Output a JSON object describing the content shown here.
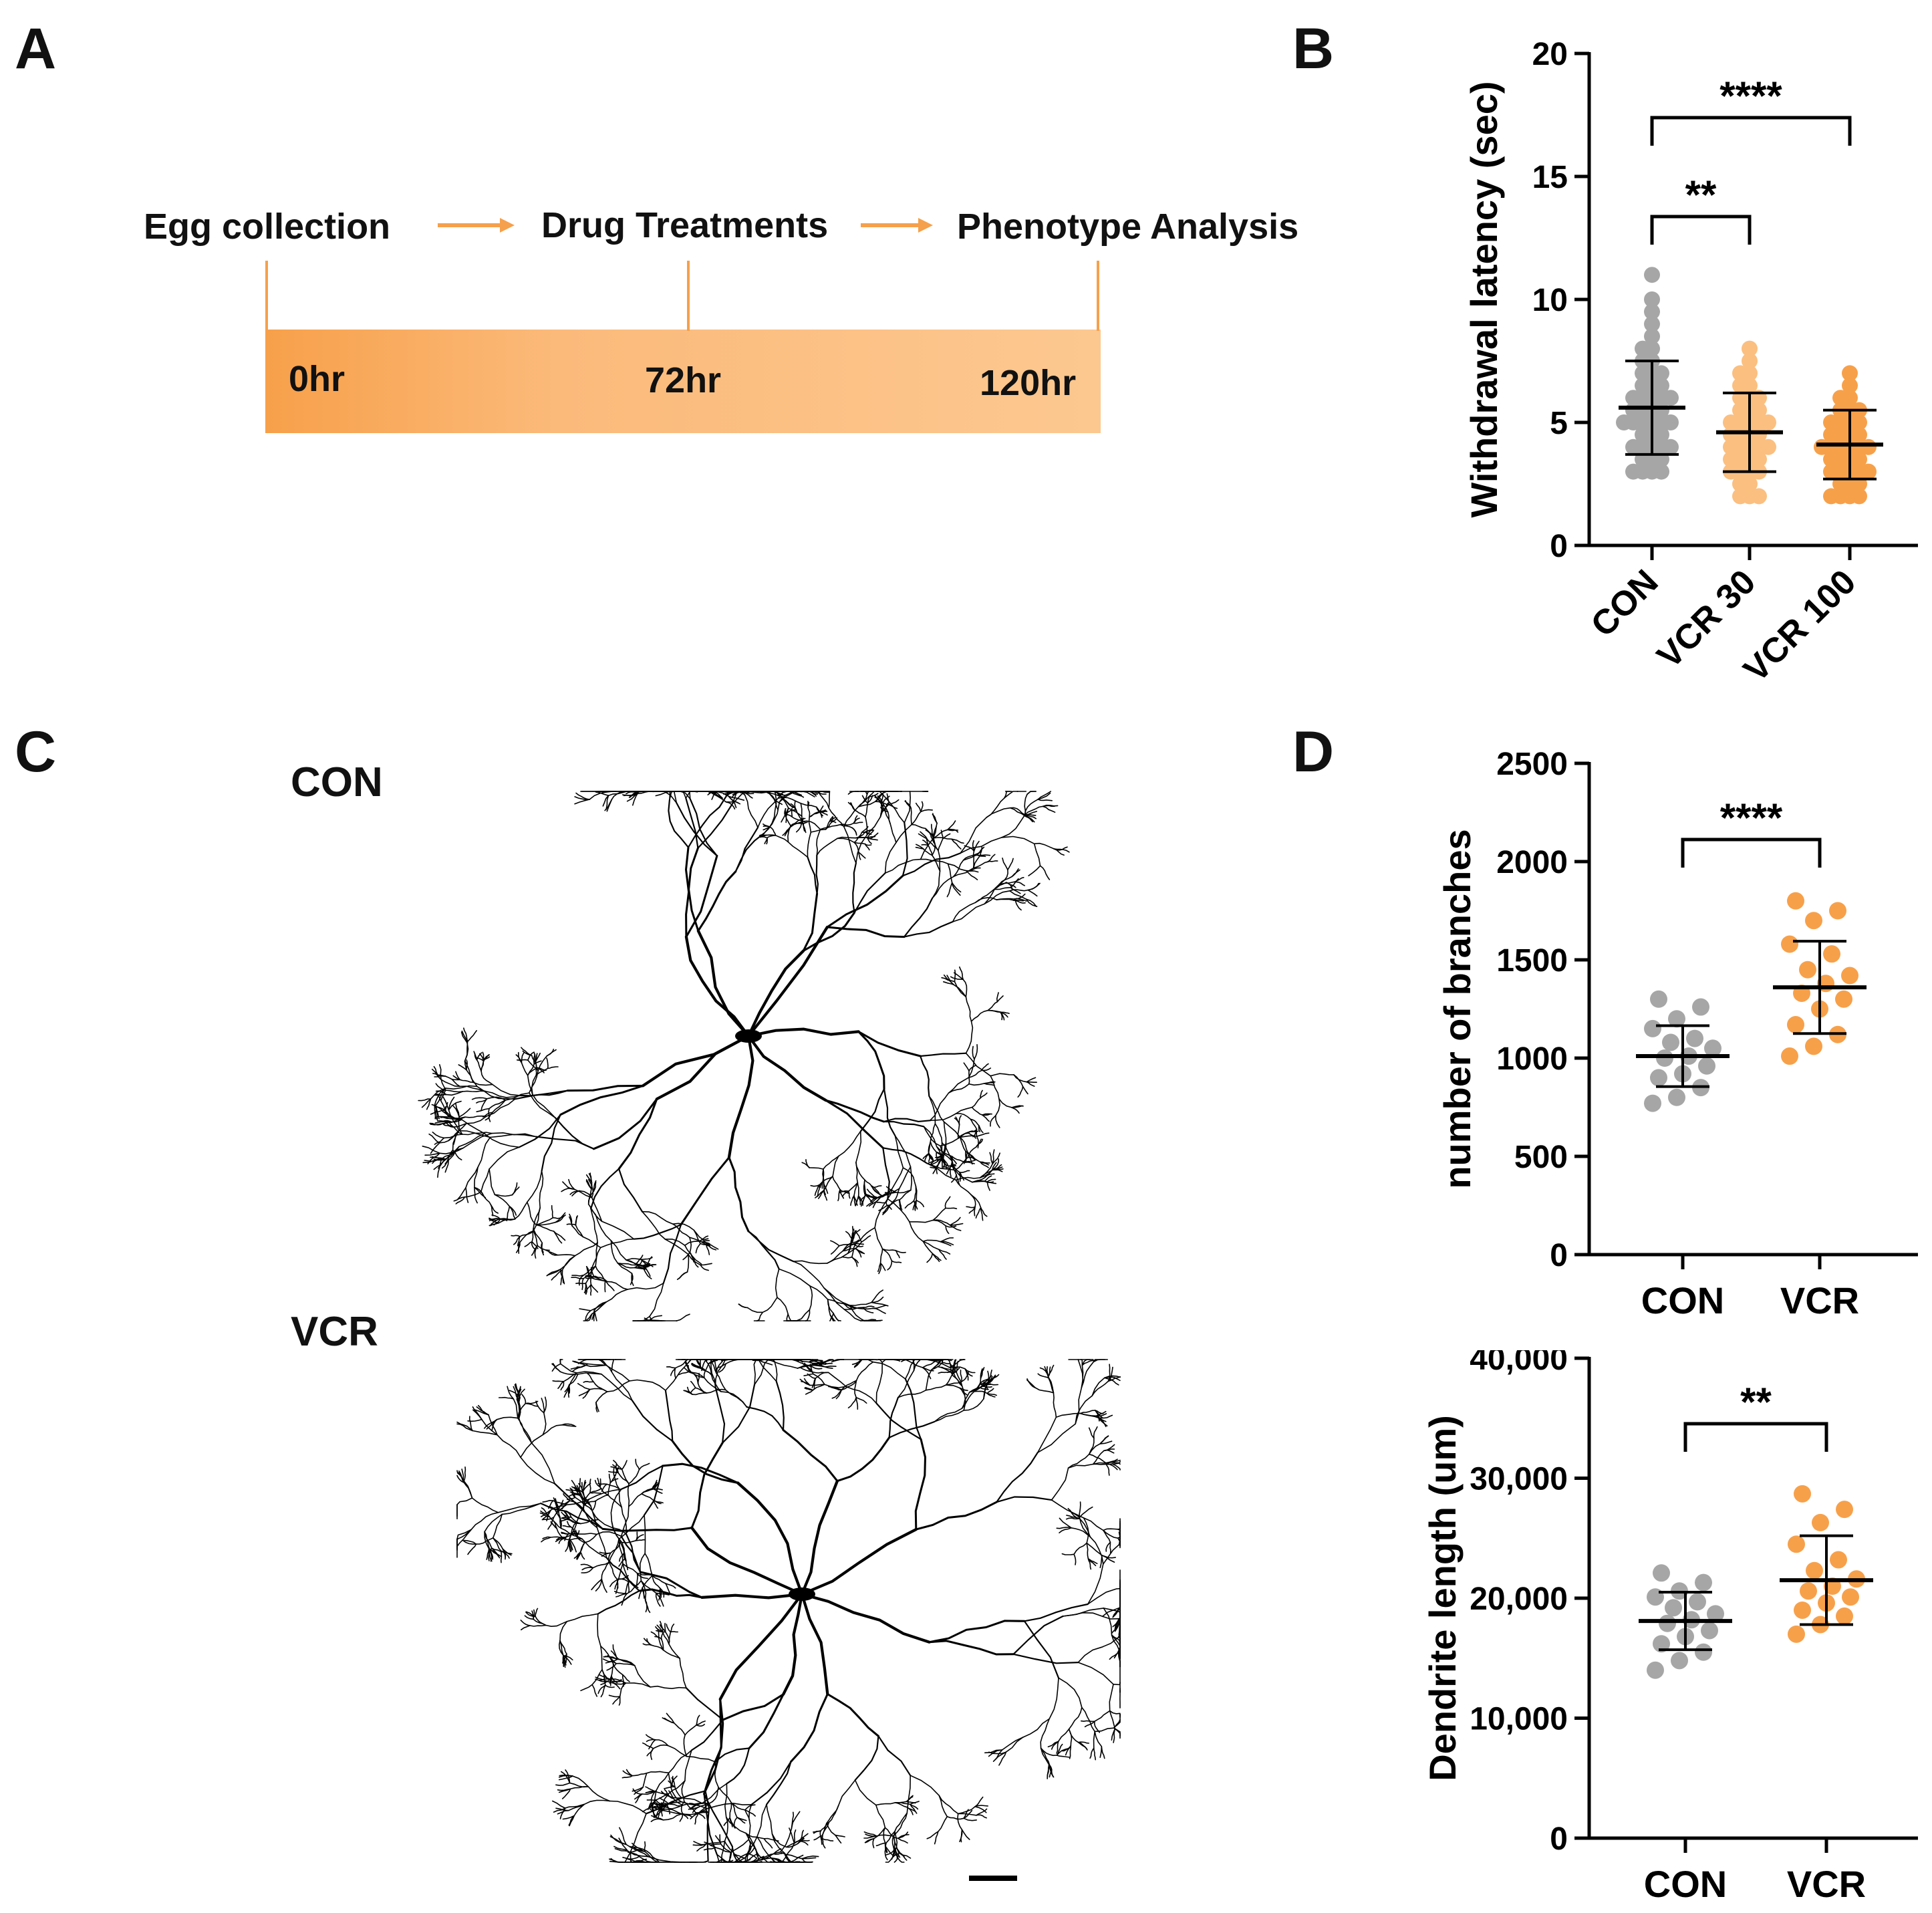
{
  "panels": {
    "a": "A",
    "b": "B",
    "c": "C",
    "d": "D"
  },
  "timeline": {
    "stages": [
      "Egg collection",
      "Drug Treatments",
      "Phenotype Analysis"
    ],
    "times": [
      "0hr",
      "72hr",
      "120hr"
    ]
  },
  "neurons": {
    "top": "CON",
    "bottom": "VCR"
  },
  "colors": {
    "con": "#a6a6a6",
    "vcr30": "#fbbf80",
    "vcr100": "#f7a04a",
    "vcr": "#f7a04a",
    "bar_start": "#f7a04a",
    "bar_end": "#fcc890",
    "arrow": "#f5a04c"
  },
  "chart_data": [
    {
      "type": "scatter",
      "title": "",
      "ylabel": "Withdrawal latency (sec)",
      "categories": [
        "CON",
        "VCR 30",
        "VCR 100"
      ],
      "ylim": [
        0,
        20
      ],
      "yticks": [
        0,
        5,
        10,
        15,
        20
      ],
      "series": [
        {
          "name": "CON",
          "mean": 5.6,
          "sd": 1.9,
          "values": [
            3,
            3,
            3,
            3,
            3.5,
            3.5,
            3.5,
            4,
            4,
            4,
            4,
            4,
            4.5,
            4.5,
            4.5,
            5,
            5,
            5,
            5,
            5,
            5,
            5.5,
            5.5,
            5.5,
            5.5,
            6,
            6,
            6,
            6,
            6,
            6.5,
            6.5,
            6.5,
            7,
            7,
            7,
            7.5,
            7.5,
            8,
            8,
            8.5,
            9,
            9.5,
            10,
            11
          ]
        },
        {
          "name": "VCR 30",
          "mean": 4.6,
          "sd": 1.6,
          "values": [
            2,
            2,
            2,
            2.5,
            2.5,
            3,
            3,
            3,
            3,
            3.5,
            3.5,
            3.5,
            3.5,
            4,
            4,
            4,
            4,
            4,
            4.5,
            4.5,
            4.5,
            4.5,
            5,
            5,
            5,
            5,
            5,
            5.5,
            5.5,
            5.5,
            6,
            6,
            6,
            6.5,
            6.5,
            7,
            7,
            7.5,
            8
          ]
        },
        {
          "name": "VCR 100",
          "mean": 4.1,
          "sd": 1.4,
          "values": [
            2,
            2,
            2,
            2,
            2.5,
            2.5,
            2.5,
            3,
            3,
            3,
            3,
            3,
            3.5,
            3.5,
            3.5,
            3.5,
            4,
            4,
            4,
            4,
            4,
            4,
            4.5,
            4.5,
            4.5,
            4.5,
            5,
            5,
            5,
            5,
            5.5,
            5.5,
            5.5,
            6,
            6,
            6.5,
            7
          ]
        }
      ],
      "significance": [
        {
          "from": "CON",
          "to": "VCR 30",
          "label": "**"
        },
        {
          "from": "CON",
          "to": "VCR 100",
          "label": "****"
        }
      ]
    },
    {
      "type": "scatter",
      "title": "",
      "ylabel": "number of branches",
      "categories": [
        "CON",
        "VCR"
      ],
      "ylim": [
        0,
        2500
      ],
      "yticks": [
        0,
        500,
        1000,
        1500,
        2000,
        2500
      ],
      "series": [
        {
          "name": "CON",
          "mean": 1010,
          "sd": 155,
          "values": [
            770,
            800,
            850,
            900,
            920,
            960,
            1000,
            1010,
            1050,
            1080,
            1100,
            1150,
            1200,
            1260,
            1300
          ]
        },
        {
          "name": "VCR",
          "mean": 1360,
          "sd": 235,
          "values": [
            1010,
            1060,
            1120,
            1170,
            1250,
            1300,
            1330,
            1380,
            1420,
            1450,
            1530,
            1580,
            1700,
            1750,
            1800
          ]
        }
      ],
      "significance": [
        {
          "from": "CON",
          "to": "VCR",
          "label": "****"
        }
      ]
    },
    {
      "type": "scatter",
      "title": "",
      "ylabel": "Dendrite length (um)",
      "categories": [
        "CON",
        "VCR"
      ],
      "ylim": [
        0,
        40000
      ],
      "yticks": [
        0,
        10000,
        20000,
        30000,
        40000
      ],
      "ytick_labels": [
        "0",
        "10,000",
        "20,000",
        "30,000",
        "40,000"
      ],
      "series": [
        {
          "name": "CON",
          "mean": 18100,
          "sd": 2400,
          "values": [
            14000,
            14800,
            15500,
            16200,
            16800,
            17300,
            17900,
            18200,
            18700,
            19200,
            19700,
            20100,
            20600,
            21300,
            22100
          ]
        },
        {
          "name": "VCR",
          "mean": 21500,
          "sd": 3700,
          "values": [
            17000,
            17800,
            18500,
            19000,
            19600,
            20100,
            20600,
            21000,
            21600,
            22300,
            23200,
            24500,
            26300,
            27400,
            28700
          ]
        }
      ],
      "significance": [
        {
          "from": "CON",
          "to": "VCR",
          "label": "**"
        }
      ]
    }
  ]
}
